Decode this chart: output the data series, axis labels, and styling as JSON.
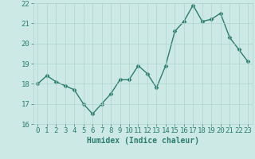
{
  "x": [
    0,
    1,
    2,
    3,
    4,
    5,
    6,
    7,
    8,
    9,
    10,
    11,
    12,
    13,
    14,
    15,
    16,
    17,
    18,
    19,
    20,
    21,
    22,
    23
  ],
  "y": [
    18.0,
    18.4,
    18.1,
    17.9,
    17.7,
    17.0,
    16.5,
    17.0,
    17.5,
    18.2,
    18.2,
    18.9,
    18.5,
    17.8,
    18.9,
    20.6,
    21.1,
    21.9,
    21.1,
    21.2,
    21.5,
    20.3,
    19.7,
    19.1
  ],
  "line_color": "#2e7d6e",
  "marker": "D",
  "marker_size": 2.5,
  "line_width": 1.0,
  "bg_color": "#cce9e5",
  "grid_color": "#b0d4cf",
  "xlabel": "Humidex (Indice chaleur)",
  "ylim": [
    16,
    22
  ],
  "xlim": [
    -0.5,
    23.5
  ],
  "yticks": [
    16,
    17,
    18,
    19,
    20,
    21,
    22
  ],
  "xticks": [
    0,
    1,
    2,
    3,
    4,
    5,
    6,
    7,
    8,
    9,
    10,
    11,
    12,
    13,
    14,
    15,
    16,
    17,
    18,
    19,
    20,
    21,
    22,
    23
  ],
  "xlabel_fontsize": 7,
  "tick_fontsize": 6.5,
  "tick_color": "#2e7d6e"
}
